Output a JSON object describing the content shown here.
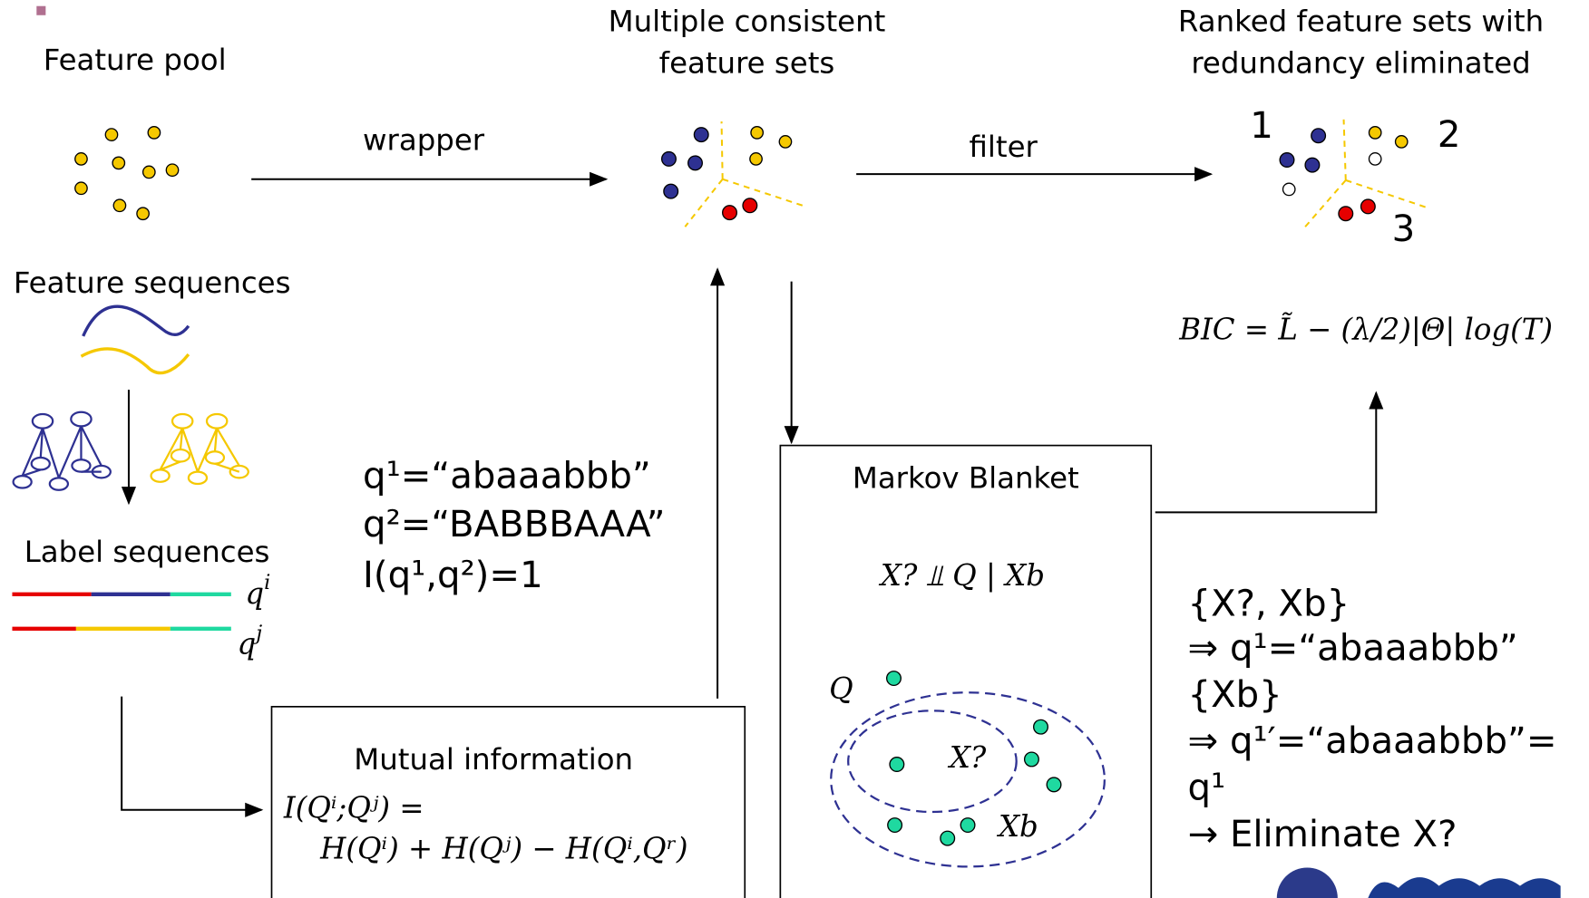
{
  "feature_pool": "Feature pool",
  "consistent_sets": {
    "line1": "Multiple consistent",
    "line2": "feature sets"
  },
  "ranked_sets": {
    "line1": "Ranked feature sets with",
    "line2": "redundancy eliminated",
    "labels": [
      "1",
      "2",
      "3"
    ]
  },
  "wrapper": "wrapper",
  "filter": "filter",
  "feature_sequences": "Feature sequences",
  "label_sequences": {
    "title": "Label sequences",
    "qi": "q",
    "qi_sup": "i",
    "qj": "q",
    "qj_sup": "j"
  },
  "example": [
    "q¹=“abaaabbb”",
    "q²=“BABBBAAA”",
    "I(q¹,q²)=1"
  ],
  "bic": "BIC = L̃ − (λ/2)|Θ| log(T)",
  "markov_blanket": {
    "title": "Markov Blanket",
    "formula": "X? ⫫ Q | Xb",
    "q": "Q",
    "x": "X?",
    "xb": "Xb"
  },
  "mutual_information": {
    "title": "Mutual information",
    "line1": "I(Qⁱ;Qʲ)  =",
    "line2": "H(Qⁱ)  +  H(Qʲ) − H(Qⁱ,Qʳ)"
  },
  "elimination": [
    "{X?, Xb}",
    "⇒ q¹=“abaaabbb”",
    "{Xb}",
    "⇒ q¹′=“abaaabbb”=",
    "q¹",
    "→ Eliminate X?"
  ]
}
